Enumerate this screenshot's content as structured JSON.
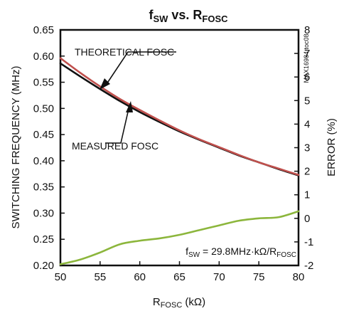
{
  "chart_data": {
    "type": "line",
    "title": {
      "main_f": "f",
      "main_f_sub": "SW",
      "main_mid": " vs. ",
      "main_r": "R",
      "main_r_sub": "FOSC"
    },
    "xlabel": {
      "main": "R",
      "sub": "FOSC",
      "unit": " (kΩ)"
    },
    "ylabel_left": "SWITCHING FREQUENCY (MHz)",
    "ylabel_right": "ERROR (%)",
    "part_number": "MAX16984 toc08",
    "xlim": [
      50,
      80
    ],
    "ylim_left": [
      0.2,
      0.65
    ],
    "ylim_right": [
      -2,
      8
    ],
    "x_ticks": [
      "50",
      "55",
      "60",
      "65",
      "70",
      "75",
      "80"
    ],
    "y_left_ticks": [
      "0.20",
      "0.25",
      "0.30",
      "0.35",
      "0.40",
      "0.45",
      "0.50",
      "0.55",
      "0.60",
      "0.65"
    ],
    "y_right_ticks": [
      "-2",
      "-1",
      "0",
      "1",
      "2",
      "3",
      "4",
      "5",
      "6",
      "7",
      "8"
    ],
    "annotations": {
      "theoretical": "THEORETICAL FOSC",
      "measured": "MEASURED FOSC",
      "formula_f": "f",
      "formula_f_sub": "SW",
      "formula_mid": " = 29.8MHz·kΩ/R",
      "formula_r_sub": "FOSC"
    },
    "series": [
      {
        "name": "THEORETICAL FOSC",
        "axis": "left",
        "color": "#c0504d",
        "x": [
          50,
          52.5,
          55,
          57.5,
          60,
          62.5,
          65,
          67.5,
          70,
          72.5,
          75,
          77.5,
          80
        ],
        "y": [
          0.596,
          0.568,
          0.542,
          0.518,
          0.497,
          0.477,
          0.458,
          0.441,
          0.426,
          0.411,
          0.397,
          0.385,
          0.373
        ]
      },
      {
        "name": "MEASURED FOSC",
        "axis": "left",
        "color": "#111111",
        "x": [
          50,
          52.5,
          55,
          57.5,
          60,
          62.5,
          65,
          67.5,
          70,
          72.5,
          75,
          77.5,
          80
        ],
        "y": [
          0.586,
          0.561,
          0.537,
          0.514,
          0.493,
          0.474,
          0.456,
          0.44,
          0.425,
          0.41,
          0.397,
          0.384,
          0.372
        ]
      },
      {
        "name": "ERROR",
        "axis": "right",
        "color": "#8cb63c",
        "x": [
          50,
          52.5,
          55,
          57.5,
          60,
          62.5,
          65,
          67.5,
          70,
          72.5,
          75,
          77.5,
          80
        ],
        "y": [
          -1.95,
          -1.75,
          -1.45,
          -1.1,
          -0.95,
          -0.85,
          -0.7,
          -0.5,
          -0.3,
          -0.1,
          0.0,
          0.05,
          0.3
        ]
      }
    ]
  }
}
